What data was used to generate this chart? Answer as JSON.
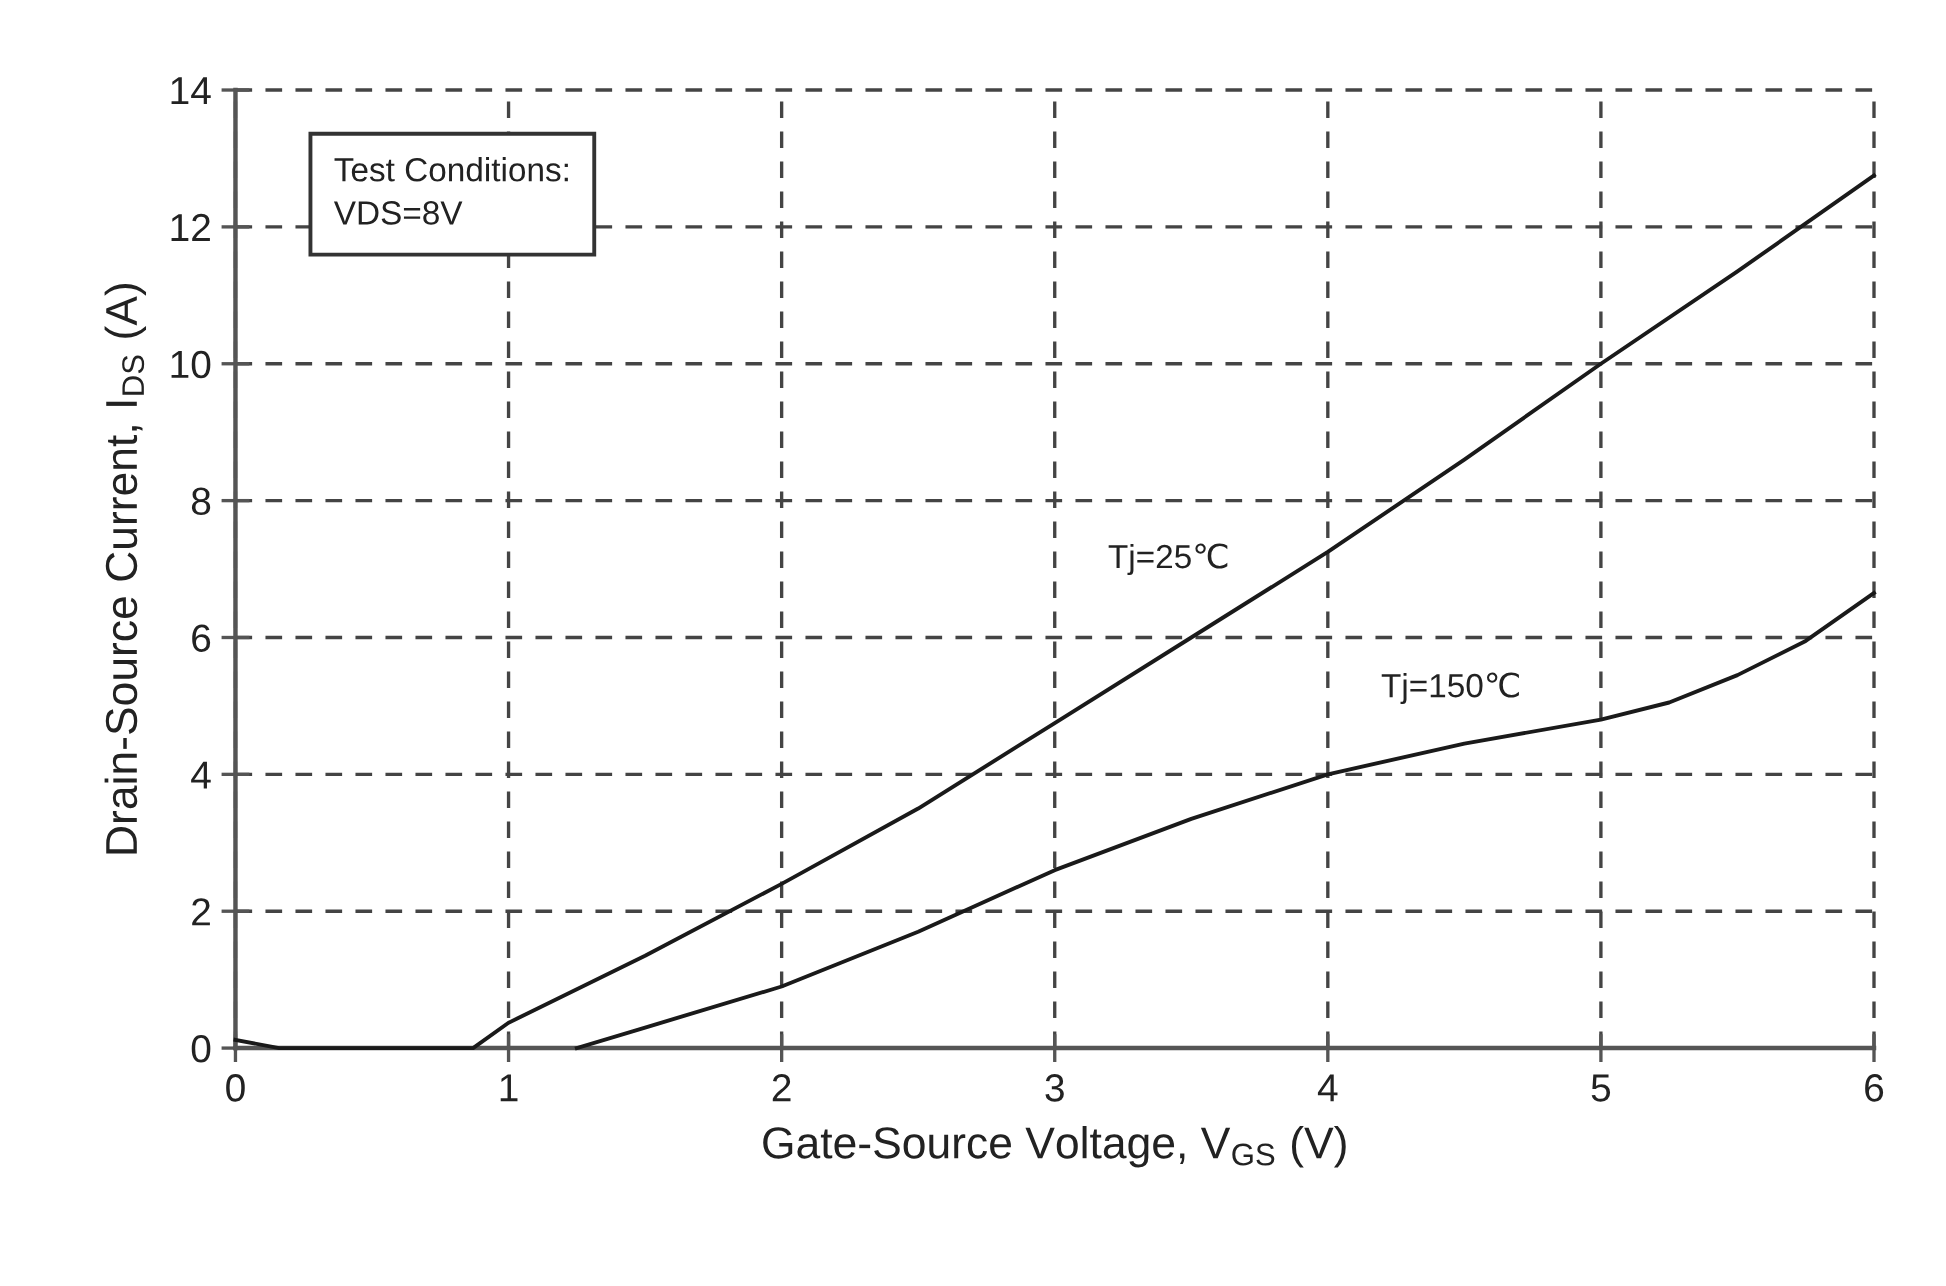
{
  "chart_data": {
    "type": "line",
    "xlabel": "Gate-Source Voltage, V$_{GS}$ (V)",
    "ylabel": "Drain-Source Current, I$_{DS}$ (A)",
    "xlim": [
      0,
      6
    ],
    "ylim": [
      0,
      14
    ],
    "xticks": [
      0,
      1,
      2,
      3,
      4,
      5,
      6
    ],
    "yticks": [
      0,
      2,
      4,
      6,
      8,
      10,
      12,
      14
    ],
    "grid": true,
    "line_style": "solid",
    "series": [
      {
        "name": "Tj=25℃",
        "color": "#1a1a1a",
        "x": [
          0,
          0.16,
          0.87,
          1,
          1.5,
          2,
          2.5,
          3,
          3.5,
          4,
          4.5,
          5,
          5.5,
          6
        ],
        "values": [
          0.12,
          0,
          0,
          0.37,
          1.35,
          2.4,
          3.5,
          4.75,
          6.0,
          7.25,
          8.6,
          10.0,
          11.35,
          12.75
        ]
      },
      {
        "name": "Tj=150℃",
        "color": "#1a1a1a",
        "x": [
          1.25,
          1.5,
          2,
          2.5,
          3,
          3.5,
          4,
          4.5,
          5,
          5.25,
          5.5,
          5.75,
          6
        ],
        "values": [
          0,
          0.3,
          0.9,
          1.7,
          2.6,
          3.35,
          4.0,
          4.45,
          4.8,
          5.05,
          5.45,
          5.95,
          6.65
        ]
      }
    ],
    "annotations": [
      "Test Conditions:\nVDS=8V"
    ]
  }
}
